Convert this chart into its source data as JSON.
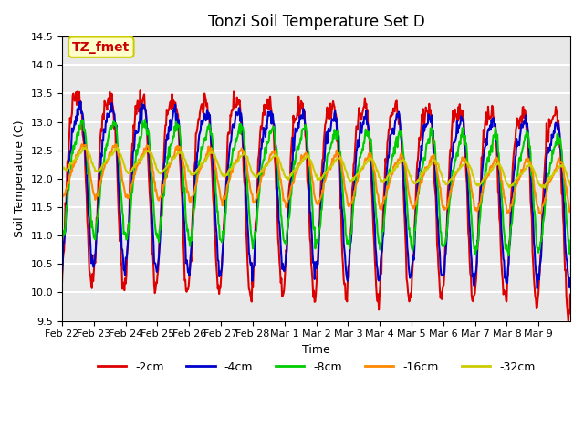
{
  "title": "Tonzi Soil Temperature Set D",
  "xlabel": "Time",
  "ylabel": "Soil Temperature (C)",
  "ylim": [
    9.5,
    14.5
  ],
  "background_color": "#e8e8e8",
  "grid_color": "white",
  "annotation_text": "TZ_fmet",
  "annotation_bg": "#ffffcc",
  "annotation_border": "#cccc00",
  "annotation_text_color": "#cc0000",
  "legend_labels": [
    "-2cm",
    "-4cm",
    "-8cm",
    "-16cm",
    "-32cm"
  ],
  "legend_colors": [
    "#dd0000",
    "#0000cc",
    "#00cc00",
    "#ff8800",
    "#cccc00"
  ],
  "line_width": 1.5,
  "xtick_labels": [
    "Feb 22",
    "Feb 23",
    "Feb 24",
    "Feb 25",
    "Feb 26",
    "Feb 27",
    "Feb 28",
    "Mar 1",
    "Mar 2",
    "Mar 3",
    "Mar 4",
    "Mar 5",
    "Mar 6",
    "Mar 7",
    "Mar 8",
    "Mar 9"
  ],
  "num_days": 16,
  "points_per_day": 48
}
